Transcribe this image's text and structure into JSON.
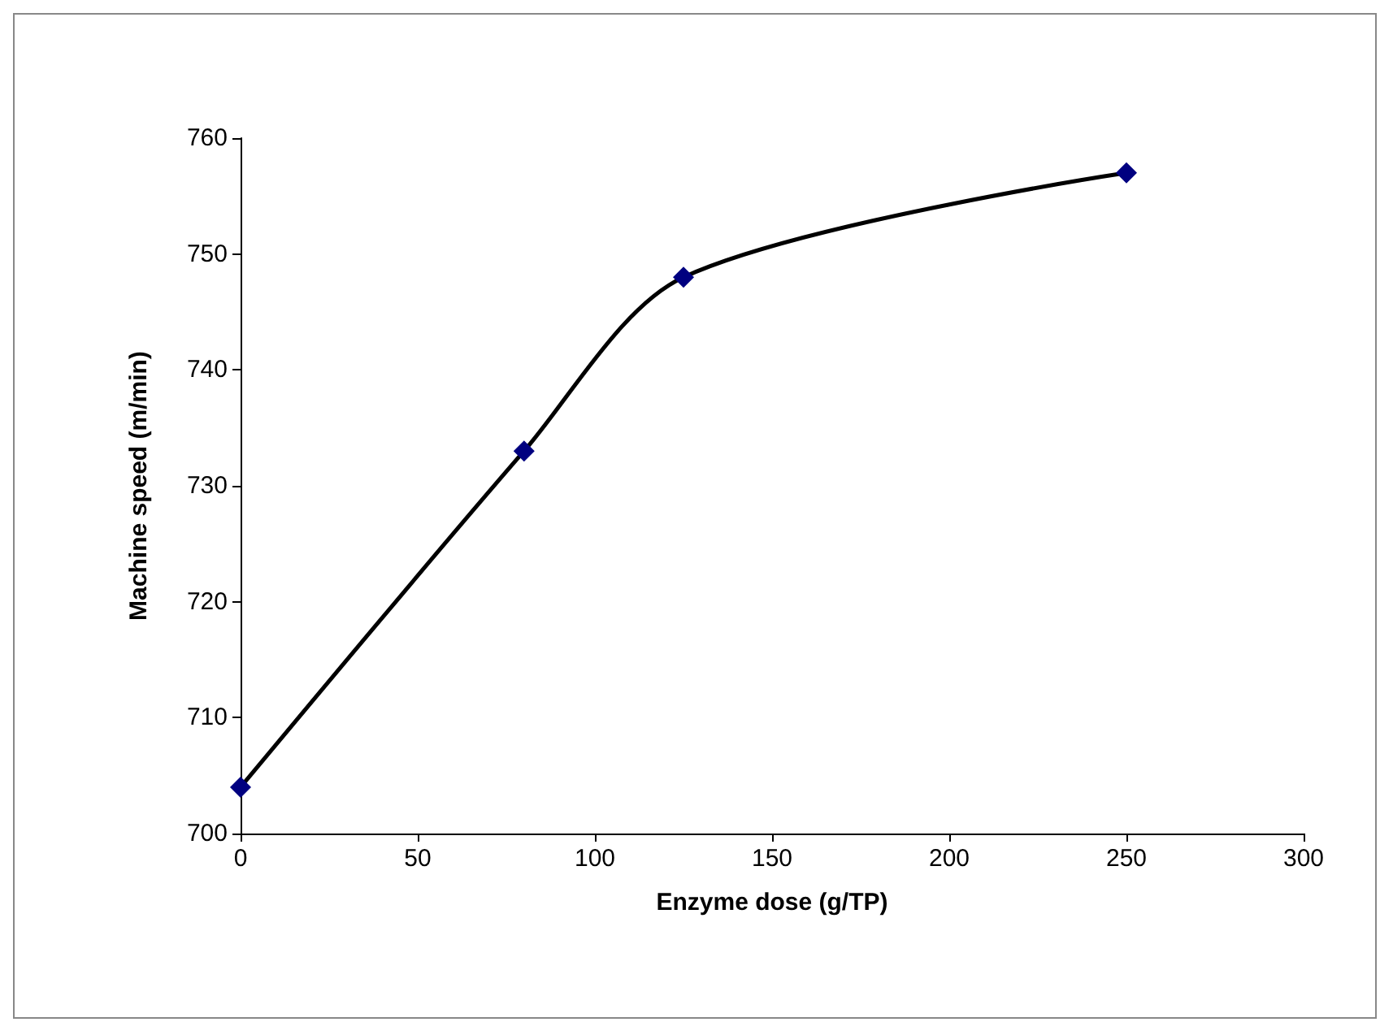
{
  "chart_data": {
    "type": "line",
    "xlabel": "Enzyme dose (g/TP)",
    "ylabel": "Machine speed (m/min)",
    "x": [
      0,
      80,
      125,
      250
    ],
    "series": [
      {
        "color": "#000000",
        "colors": [
          "#000080",
          "#000080",
          "#000080",
          "#000080"
        ],
        "values": [
          704,
          733,
          748,
          757
        ]
      }
    ],
    "xlim": [
      0,
      300
    ],
    "xticks": [
      0,
      50,
      100,
      150,
      200,
      250,
      300
    ],
    "ylim": [
      700,
      760
    ],
    "yticks": [
      700,
      710,
      720,
      730,
      740,
      750,
      760
    ],
    "grid": false,
    "marker": "diamond"
  }
}
